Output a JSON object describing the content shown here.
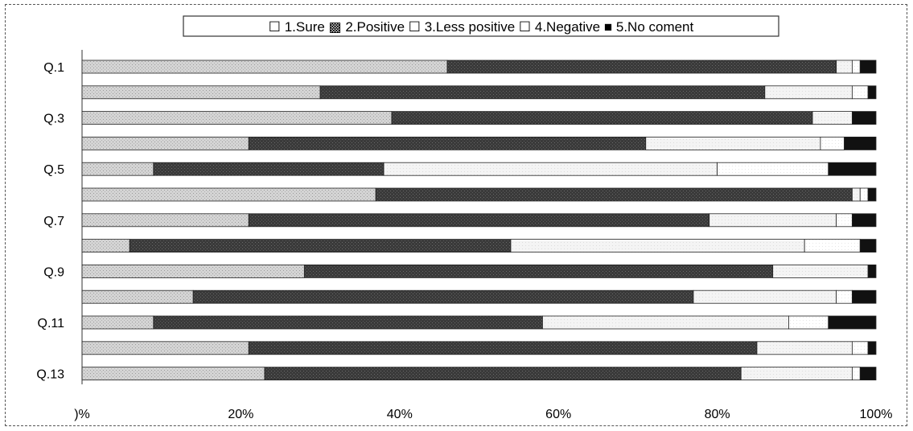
{
  "chart_data": {
    "type": "bar",
    "orientation": "horizontal",
    "stacked": true,
    "percent": true,
    "categories": [
      "Q.1",
      "",
      "Q.3",
      "",
      "Q.5",
      "",
      "Q.7",
      "",
      "Q.9",
      "",
      "Q.11",
      "",
      "Q.13"
    ],
    "series": [
      {
        "name": "1.Sure",
        "pattern": "light-gray-dots",
        "values": [
          46,
          30,
          39,
          21,
          9,
          37,
          21,
          6,
          28,
          14,
          9,
          21,
          23
        ]
      },
      {
        "name": "2.Positive",
        "pattern": "dark-gray-dots",
        "values": [
          49,
          56,
          53,
          50,
          29,
          60,
          58,
          48,
          59,
          63,
          49,
          64,
          60
        ]
      },
      {
        "name": "3.Less positive",
        "pattern": "white",
        "values": [
          2,
          11,
          5,
          22,
          42,
          1,
          16,
          37,
          12,
          18,
          31,
          12,
          14
        ]
      },
      {
        "name": "4.Negative",
        "pattern": "white",
        "values": [
          1,
          2,
          0,
          3,
          14,
          1,
          2,
          7,
          0,
          2,
          5,
          2,
          1
        ]
      },
      {
        "name": "5.No coment",
        "pattern": "black",
        "values": [
          2,
          1,
          3,
          4,
          6,
          1,
          3,
          2,
          1,
          3,
          6,
          1,
          2
        ]
      }
    ],
    "xlim": [
      0,
      100
    ],
    "x_ticks": [
      0,
      20,
      40,
      60,
      80,
      100
    ],
    "x_tick_labels": [
      ")%",
      "20%",
      "40%",
      "60%",
      "80%",
      "100%"
    ],
    "legend": {
      "placement": "top-center",
      "entries": [
        {
          "symbol": "☐",
          "text": "1.Sure"
        },
        {
          "symbol": "▩",
          "text": "2.Positive"
        },
        {
          "symbol": "☐",
          "text": "3.Less positive"
        },
        {
          "symbol": "☐",
          "text": "4.Negative"
        },
        {
          "symbol": "■",
          "text": "5.No coment"
        }
      ]
    },
    "grid": false,
    "title": "",
    "xlabel": "",
    "ylabel": "",
    "colors": {
      "sure": "#cfcfcf",
      "positive": "#3a3a3a",
      "less_positive": "#ffffff",
      "negative": "#ffffff",
      "no_comment": "#111111"
    }
  }
}
